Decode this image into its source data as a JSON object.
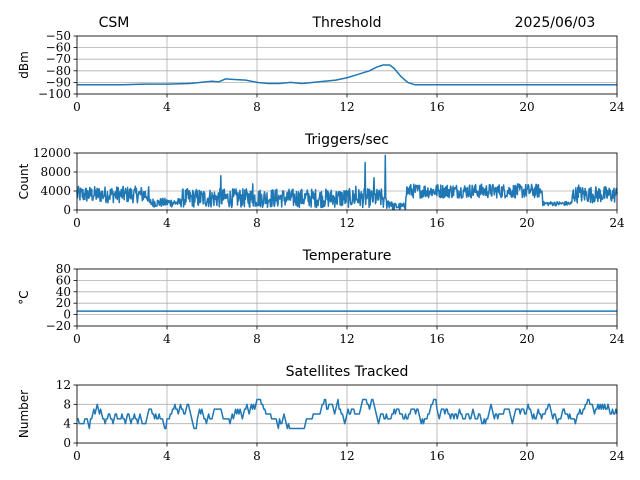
{
  "header": {
    "left_label": "CSM",
    "date_label": "2025/06/03"
  },
  "colors": {
    "series": "#1f77b4",
    "grid": "#b0b0b0"
  },
  "chart_data": [
    {
      "type": "line",
      "title": "Threshold",
      "ylabel": "dBm",
      "xlabel": "",
      "xlim": [
        0,
        24
      ],
      "ylim": [
        -100,
        -50
      ],
      "xticks": [
        0,
        4,
        8,
        12,
        16,
        20,
        24
      ],
      "yticks": [
        -100,
        -90,
        -80,
        -70,
        -60,
        -50
      ],
      "ytick_labels": [
        "−100",
        "−90",
        "−80",
        "−70",
        "−60",
        "−50"
      ],
      "grid": true,
      "series": [
        {
          "x": [
            0,
            1,
            2,
            3,
            4,
            5,
            5.5,
            6,
            6.3,
            6.6,
            7,
            7.5,
            8,
            8.5,
            9,
            9.5,
            10,
            10.5,
            11,
            11.5,
            12,
            12.5,
            13,
            13.3,
            13.6,
            13.9,
            14.1,
            14.4,
            14.7,
            15,
            16,
            17,
            18,
            19,
            20,
            21,
            22,
            23,
            24
          ],
          "y": [
            -92,
            -92,
            -92,
            -91.5,
            -91.5,
            -91,
            -90,
            -89,
            -89.5,
            -87,
            -87.5,
            -88,
            -90,
            -91,
            -91,
            -90,
            -91,
            -90,
            -89,
            -88,
            -86,
            -83,
            -80,
            -77,
            -75,
            -75,
            -78,
            -85,
            -90,
            -92,
            -92,
            -92,
            -92,
            -92,
            -92,
            -92,
            -92,
            -92,
            -92
          ]
        }
      ]
    },
    {
      "type": "line",
      "title": "Triggers/sec",
      "ylabel": "Count",
      "xlabel": "",
      "xlim": [
        0,
        24
      ],
      "ylim": [
        0,
        12000
      ],
      "xticks": [
        0,
        4,
        8,
        12,
        16,
        20,
        24
      ],
      "yticks": [
        0,
        4000,
        8000,
        12000
      ],
      "ytick_labels": [
        "0",
        "4000",
        "8000",
        "12000"
      ],
      "grid": true,
      "noise": [
        {
          "from": 0,
          "to": 3.2,
          "min": 1500,
          "max": 5000
        },
        {
          "from": 3.2,
          "to": 4.6,
          "min": 600,
          "max": 2500
        },
        {
          "from": 4.6,
          "to": 13.6,
          "min": 500,
          "max": 4500
        },
        {
          "from": 13.6,
          "to": 14.0,
          "min": 200,
          "max": 3000
        },
        {
          "from": 14.0,
          "to": 14.6,
          "min": 0,
          "max": 1500
        },
        {
          "from": 14.6,
          "to": 20.7,
          "min": 2500,
          "max": 5500
        },
        {
          "from": 20.7,
          "to": 22.0,
          "min": 900,
          "max": 1800
        },
        {
          "from": 22.0,
          "to": 24,
          "min": 1500,
          "max": 5000
        }
      ],
      "spikes": [
        {
          "x": 6.4,
          "y": 7200
        },
        {
          "x": 7.8,
          "y": 5500
        },
        {
          "x": 12.8,
          "y": 10000
        },
        {
          "x": 13.7,
          "y": 11500
        },
        {
          "x": 12.4,
          "y": 5000
        },
        {
          "x": 13.2,
          "y": 6800
        },
        {
          "x": 14.8,
          "y": 5000
        },
        {
          "x": 22.3,
          "y": 5200
        }
      ]
    },
    {
      "type": "line",
      "title": "Temperature",
      "ylabel": "°C",
      "xlabel": "",
      "xlim": [
        0,
        24
      ],
      "ylim": [
        -20,
        80
      ],
      "xticks": [
        0,
        4,
        8,
        12,
        16,
        20,
        24
      ],
      "yticks": [
        -20,
        0,
        20,
        40,
        60,
        80
      ],
      "ytick_labels": [
        "−20",
        "0",
        "20",
        "40",
        "60",
        "80"
      ],
      "grid": true,
      "series": [
        {
          "x": [
            0,
            24
          ],
          "y": [
            6,
            6
          ]
        }
      ]
    },
    {
      "type": "line",
      "title": "Satellites Tracked",
      "ylabel": "Number",
      "xlabel": "",
      "xlim": [
        0,
        24
      ],
      "ylim": [
        0,
        12
      ],
      "xticks": [
        0,
        4,
        8,
        12,
        16,
        20,
        24
      ],
      "yticks": [
        0,
        4,
        8,
        12
      ],
      "ytick_labels": [
        "0",
        "4",
        "8",
        "12"
      ],
      "grid": true,
      "step_random": {
        "min": 3,
        "max": 9,
        "center": 6
      }
    }
  ]
}
